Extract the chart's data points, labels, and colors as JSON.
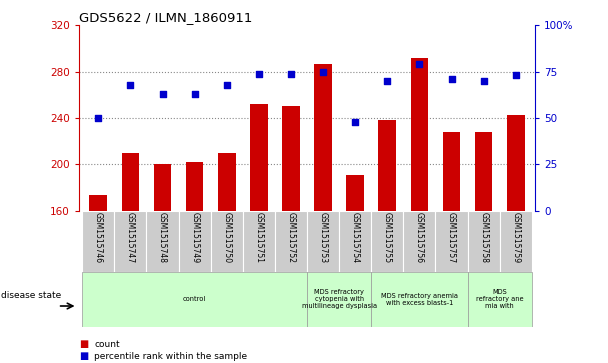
{
  "title": "GDS5622 / ILMN_1860911",
  "samples": [
    "GSM1515746",
    "GSM1515747",
    "GSM1515748",
    "GSM1515749",
    "GSM1515750",
    "GSM1515751",
    "GSM1515752",
    "GSM1515753",
    "GSM1515754",
    "GSM1515755",
    "GSM1515756",
    "GSM1515757",
    "GSM1515758",
    "GSM1515759"
  ],
  "counts": [
    173,
    210,
    200,
    202,
    210,
    252,
    250,
    287,
    191,
    238,
    292,
    228,
    228,
    243
  ],
  "percentiles": [
    50,
    68,
    63,
    63,
    68,
    74,
    74,
    75,
    48,
    70,
    79,
    71,
    70,
    73
  ],
  "ylim_left": [
    160,
    320
  ],
  "ylim_right": [
    0,
    100
  ],
  "yticks_left": [
    160,
    200,
    240,
    280,
    320
  ],
  "yticks_right": [
    0,
    25,
    50,
    75,
    100
  ],
  "bar_color": "#cc0000",
  "dot_color": "#0000cc",
  "grid_color": "#888888",
  "disease_group_boundaries": [
    [
      0,
      7,
      "control"
    ],
    [
      7,
      9,
      "MDS refractory\ncytopenia with\nmultilineage dysplasia"
    ],
    [
      9,
      12,
      "MDS refractory anemia\nwith excess blasts-1"
    ],
    [
      12,
      14,
      "MDS\nrefractory ane\nmia with"
    ]
  ],
  "legend_count": "count",
  "legend_percentile": "percentile rank within the sample",
  "bg_color": "#ffffff",
  "tick_area_color": "#cccccc",
  "disease_area_color": "#ccffcc",
  "disease_border_color": "#999999"
}
